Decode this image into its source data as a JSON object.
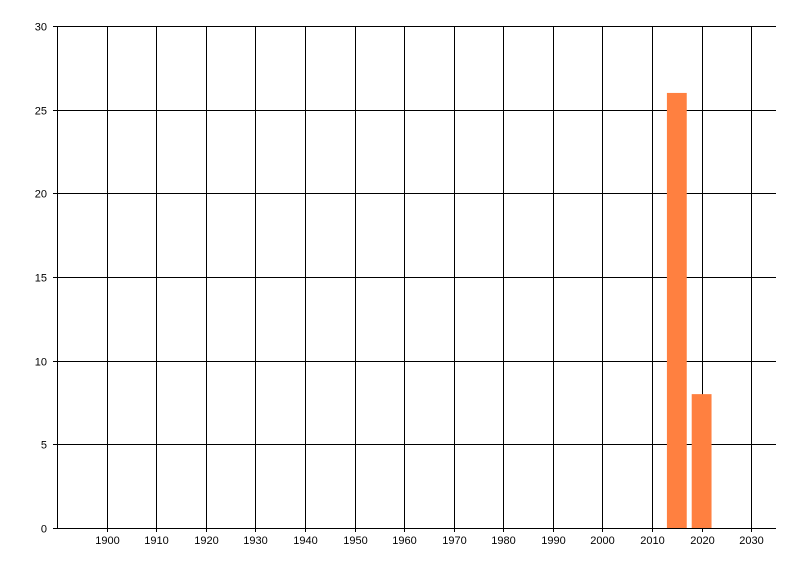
{
  "chart_data": {
    "type": "bar",
    "title": "",
    "xlabel": "",
    "ylabel": "",
    "xlim": [
      1890,
      2035
    ],
    "ylim": [
      0,
      30
    ],
    "x_ticks": [
      1900,
      1910,
      1920,
      1930,
      1940,
      1950,
      1960,
      1970,
      1980,
      1990,
      2000,
      2010,
      2020,
      2030
    ],
    "y_ticks": [
      0,
      5,
      10,
      15,
      20,
      25,
      30
    ],
    "grid": true,
    "bar_width_years": 4,
    "bar_color": "#FF8040",
    "x": [
      2015,
      2020
    ],
    "values": [
      26,
      8
    ]
  }
}
